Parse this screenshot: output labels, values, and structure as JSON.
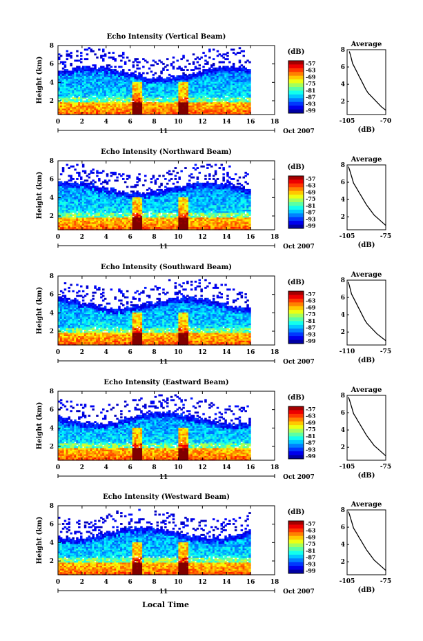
{
  "figure": {
    "xlabel": "Local Time",
    "date_suffix": "Oct 2007",
    "day_label": "11",
    "colorbar_unit": "(dB)",
    "colorbar_ticks": [
      "-57",
      "-63",
      "-69",
      "-75",
      "-81",
      "-87",
      "-93",
      "-99"
    ],
    "avg_title": "Average",
    "avg_xlabel": "(dB)"
  },
  "chart_data": [
    {
      "type": "heatmap",
      "title": "Echo Intensity (Vertical Beam)",
      "xlabel": "Local Time",
      "ylabel": "Height (km)",
      "x_ticks": [
        "0",
        "2",
        "4",
        "6",
        "8",
        "10",
        "12",
        "14",
        "16",
        "18"
      ],
      "y_ticks": [
        "2",
        "4",
        "6",
        "8"
      ],
      "xlim": [
        0,
        18
      ],
      "ylim": [
        0.5,
        8
      ],
      "data_xlim": [
        0,
        16
      ],
      "colorbar": {
        "label": "(dB)",
        "min": -99,
        "max": -57
      },
      "average_profile": {
        "title": "Average",
        "xlabel": "(dB)",
        "x_ticks": [
          "-105",
          "-70"
        ],
        "xlim": [
          -105,
          -70
        ],
        "y_ticks": [
          "2",
          "4",
          "6",
          "8"
        ],
        "points": [
          [
            -70,
            1
          ],
          [
            -74,
            1.4
          ],
          [
            -77,
            1.8
          ],
          [
            -80,
            2.2
          ],
          [
            -83,
            2.6
          ],
          [
            -86,
            3.0
          ],
          [
            -88,
            3.4
          ],
          [
            -90,
            3.9
          ],
          [
            -92,
            4.4
          ],
          [
            -94,
            4.9
          ],
          [
            -96,
            5.4
          ],
          [
            -98,
            5.9
          ],
          [
            -100,
            6.4
          ],
          [
            -101,
            6.9
          ],
          [
            -102,
            7.4
          ],
          [
            -103,
            7.8
          ]
        ]
      }
    },
    {
      "type": "heatmap",
      "title": "Echo Intensity (Northward Beam)",
      "xlabel": "Local Time",
      "ylabel": "Height (km)",
      "x_ticks": [
        "0",
        "2",
        "4",
        "6",
        "8",
        "10",
        "12",
        "14",
        "16",
        "18"
      ],
      "y_ticks": [
        "2",
        "4",
        "6",
        "8"
      ],
      "xlim": [
        0,
        18
      ],
      "ylim": [
        0.5,
        8
      ],
      "data_xlim": [
        0,
        16
      ],
      "colorbar": {
        "label": "(dB)",
        "min": -99,
        "max": -57
      },
      "average_profile": {
        "title": "Average",
        "xlabel": "(dB)",
        "x_ticks": [
          "-105",
          "-75"
        ],
        "xlim": [
          -105,
          -75
        ],
        "y_ticks": [
          "2",
          "4",
          "6",
          "8"
        ],
        "points": [
          [
            -75,
            1
          ],
          [
            -78,
            1.4
          ],
          [
            -81,
            1.8
          ],
          [
            -84,
            2.2
          ],
          [
            -86,
            2.6
          ],
          [
            -88,
            3.0
          ],
          [
            -90,
            3.4
          ],
          [
            -92,
            3.9
          ],
          [
            -94,
            4.4
          ],
          [
            -96,
            4.9
          ],
          [
            -98,
            5.4
          ],
          [
            -100,
            5.9
          ],
          [
            -101,
            6.4
          ],
          [
            -102,
            6.9
          ],
          [
            -103,
            7.4
          ],
          [
            -104,
            7.8
          ]
        ]
      }
    },
    {
      "type": "heatmap",
      "title": "Echo Intensity (Southward Beam)",
      "xlabel": "Local Time",
      "ylabel": "Height (km)",
      "x_ticks": [
        "0",
        "2",
        "4",
        "6",
        "8",
        "10",
        "12",
        "14",
        "16",
        "18"
      ],
      "y_ticks": [
        "2",
        "4",
        "6",
        "8"
      ],
      "xlim": [
        0,
        18
      ],
      "ylim": [
        0.5,
        8
      ],
      "data_xlim": [
        0,
        16
      ],
      "colorbar": {
        "label": "(dB)",
        "min": -99,
        "max": -57
      },
      "average_profile": {
        "title": "Average",
        "xlabel": "(dB)",
        "x_ticks": [
          "-110",
          "-75"
        ],
        "xlim": [
          -110,
          -75
        ],
        "y_ticks": [
          "2",
          "4",
          "6",
          "8"
        ],
        "points": [
          [
            -75,
            1
          ],
          [
            -79,
            1.4
          ],
          [
            -83,
            1.8
          ],
          [
            -86,
            2.2
          ],
          [
            -89,
            2.6
          ],
          [
            -92,
            3.0
          ],
          [
            -94,
            3.4
          ],
          [
            -96,
            3.9
          ],
          [
            -98,
            4.4
          ],
          [
            -100,
            4.9
          ],
          [
            -102,
            5.4
          ],
          [
            -104,
            5.9
          ],
          [
            -106,
            6.4
          ],
          [
            -107,
            6.9
          ],
          [
            -108,
            7.4
          ],
          [
            -109,
            7.8
          ]
        ]
      }
    },
    {
      "type": "heatmap",
      "title": "Echo Intensity (Eastward Beam)",
      "xlabel": "Local Time",
      "ylabel": "Height (km)",
      "x_ticks": [
        "0",
        "2",
        "4",
        "6",
        "8",
        "10",
        "12",
        "14",
        "16",
        "18"
      ],
      "y_ticks": [
        "2",
        "4",
        "6",
        "8"
      ],
      "xlim": [
        0,
        18
      ],
      "ylim": [
        0.5,
        8
      ],
      "data_xlim": [
        0,
        16
      ],
      "colorbar": {
        "label": "(dB)",
        "min": -99,
        "max": -57
      },
      "average_profile": {
        "title": "Average",
        "xlabel": "(dB)",
        "x_ticks": [
          "-105",
          "-75"
        ],
        "xlim": [
          -105,
          -75
        ],
        "y_ticks": [
          "2",
          "4",
          "6",
          "8"
        ],
        "points": [
          [
            -75,
            1
          ],
          [
            -78,
            1.4
          ],
          [
            -81,
            1.8
          ],
          [
            -84,
            2.2
          ],
          [
            -86,
            2.6
          ],
          [
            -88,
            3.0
          ],
          [
            -90,
            3.4
          ],
          [
            -92,
            3.9
          ],
          [
            -94,
            4.4
          ],
          [
            -96,
            4.9
          ],
          [
            -98,
            5.4
          ],
          [
            -100,
            5.9
          ],
          [
            -101,
            6.4
          ],
          [
            -102,
            6.9
          ],
          [
            -103,
            7.4
          ],
          [
            -104,
            7.8
          ]
        ]
      }
    },
    {
      "type": "heatmap",
      "title": "Echo Intensity (Westward Beam)",
      "xlabel": "Local Time",
      "ylabel": "Height (km)",
      "x_ticks": [
        "0",
        "2",
        "4",
        "6",
        "8",
        "10",
        "12",
        "14",
        "16",
        "18"
      ],
      "y_ticks": [
        "2",
        "4",
        "6",
        "8"
      ],
      "xlim": [
        0,
        18
      ],
      "ylim": [
        0.5,
        8
      ],
      "data_xlim": [
        0,
        16
      ],
      "colorbar": {
        "label": "(dB)",
        "min": -99,
        "max": -57
      },
      "average_profile": {
        "title": "Average",
        "xlabel": "(dB)",
        "x_ticks": [
          "-105",
          "-75"
        ],
        "xlim": [
          -105,
          -75
        ],
        "y_ticks": [
          "2",
          "4",
          "6",
          "8"
        ],
        "points": [
          [
            -75,
            1
          ],
          [
            -78,
            1.4
          ],
          [
            -81,
            1.8
          ],
          [
            -84,
            2.2
          ],
          [
            -86,
            2.6
          ],
          [
            -88,
            3.0
          ],
          [
            -90,
            3.4
          ],
          [
            -92,
            3.9
          ],
          [
            -94,
            4.4
          ],
          [
            -96,
            4.9
          ],
          [
            -98,
            5.4
          ],
          [
            -100,
            5.9
          ],
          [
            -101,
            6.4
          ],
          [
            -102,
            6.9
          ],
          [
            -103,
            7.4
          ],
          [
            -104,
            7.8
          ]
        ]
      }
    }
  ]
}
